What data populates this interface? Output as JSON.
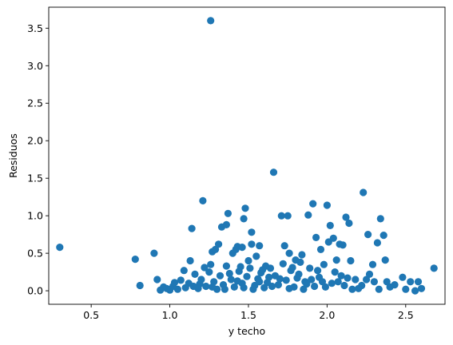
{
  "chart_data": {
    "type": "scatter",
    "title": "",
    "xlabel": "y techo",
    "ylabel": "Residuos",
    "xlim": [
      0.23,
      2.75
    ],
    "ylim": [
      -0.18,
      3.78
    ],
    "xticks": [
      0.5,
      1.0,
      1.5,
      2.0,
      2.5
    ],
    "xtick_labels": [
      "0.5",
      "1.0",
      "1.5",
      "2.0",
      "2.5"
    ],
    "yticks": [
      0.0,
      0.5,
      1.0,
      1.5,
      2.0,
      2.5,
      3.0,
      3.5
    ],
    "ytick_labels": [
      "0.0",
      "0.5",
      "1.0",
      "1.5",
      "2.0",
      "2.5",
      "3.0",
      "3.5"
    ],
    "grid": false,
    "legend": "none",
    "point_color": "#1f77b4",
    "points": [
      [
        0.3,
        0.58
      ],
      [
        0.78,
        0.42
      ],
      [
        0.81,
        0.07
      ],
      [
        0.9,
        0.5
      ],
      [
        0.92,
        0.15
      ],
      [
        1.14,
        0.83
      ],
      [
        1.13,
        0.4
      ],
      [
        1.21,
        1.2
      ],
      [
        1.26,
        3.6
      ],
      [
        1.27,
        0.52
      ],
      [
        1.29,
        0.55
      ],
      [
        1.31,
        0.62
      ],
      [
        1.33,
        0.85
      ],
      [
        1.36,
        0.88
      ],
      [
        1.37,
        1.03
      ],
      [
        1.4,
        0.5
      ],
      [
        1.42,
        0.55
      ],
      [
        1.43,
        0.59
      ],
      [
        1.46,
        0.58
      ],
      [
        1.47,
        0.96
      ],
      [
        1.48,
        1.1
      ],
      [
        1.52,
        0.78
      ],
      [
        1.52,
        0.62
      ],
      [
        1.55,
        0.46
      ],
      [
        1.57,
        0.6
      ],
      [
        1.66,
        1.58
      ],
      [
        1.71,
        1.0
      ],
      [
        1.73,
        0.6
      ],
      [
        1.75,
        1.0
      ],
      [
        1.76,
        0.5
      ],
      [
        1.8,
        0.41
      ],
      [
        1.84,
        0.48
      ],
      [
        1.88,
        1.01
      ],
      [
        1.91,
        1.16
      ],
      [
        1.93,
        0.71
      ],
      [
        1.96,
        0.55
      ],
      [
        2.0,
        1.14
      ],
      [
        2.01,
        0.65
      ],
      [
        2.02,
        0.87
      ],
      [
        2.04,
        0.7
      ],
      [
        2.06,
        0.41
      ],
      [
        2.08,
        0.62
      ],
      [
        2.1,
        0.61
      ],
      [
        2.12,
        0.98
      ],
      [
        2.14,
        0.9
      ],
      [
        2.15,
        0.4
      ],
      [
        2.23,
        1.31
      ],
      [
        2.26,
        0.75
      ],
      [
        2.29,
        0.35
      ],
      [
        2.32,
        0.64
      ],
      [
        2.34,
        0.96
      ],
      [
        2.36,
        0.74
      ],
      [
        2.37,
        0.41
      ],
      [
        2.48,
        0.18
      ],
      [
        2.53,
        0.12
      ],
      [
        2.58,
        0.12
      ],
      [
        2.6,
        0.03
      ],
      [
        2.68,
        0.3
      ],
      [
        2.5,
        0.02
      ],
      [
        2.56,
        0.0
      ],
      [
        2.43,
        0.08
      ],
      [
        2.4,
        0.05
      ],
      [
        2.3,
        0.12
      ],
      [
        2.27,
        0.22
      ],
      [
        2.22,
        0.07
      ],
      [
        2.18,
        0.15
      ],
      [
        2.2,
        0.03
      ],
      [
        2.09,
        0.2
      ],
      [
        2.05,
        0.25
      ],
      [
        2.03,
        0.1
      ],
      [
        1.98,
        0.35
      ],
      [
        1.95,
        0.18
      ],
      [
        1.92,
        0.06
      ],
      [
        1.89,
        0.3
      ],
      [
        1.86,
        0.12
      ],
      [
        1.83,
        0.38
      ],
      [
        1.82,
        0.22
      ],
      [
        1.79,
        0.05
      ],
      [
        1.77,
        0.27
      ],
      [
        1.74,
        0.14
      ],
      [
        1.72,
        0.36
      ],
      [
        1.69,
        0.08
      ],
      [
        1.67,
        0.2
      ],
      [
        1.64,
        0.3
      ],
      [
        1.62,
        0.11
      ],
      [
        1.6,
        0.04
      ],
      [
        1.58,
        0.24
      ],
      [
        1.56,
        0.16
      ],
      [
        1.54,
        0.07
      ],
      [
        1.51,
        0.3
      ],
      [
        1.49,
        0.19
      ],
      [
        1.46,
        0.1
      ],
      [
        1.44,
        0.26
      ],
      [
        1.41,
        0.05
      ],
      [
        1.39,
        0.15
      ],
      [
        1.36,
        0.33
      ],
      [
        1.34,
        0.08
      ],
      [
        1.32,
        0.2
      ],
      [
        1.3,
        0.02
      ],
      [
        1.28,
        0.12
      ],
      [
        1.25,
        0.25
      ],
      [
        1.23,
        0.06
      ],
      [
        1.2,
        0.15
      ],
      [
        1.18,
        0.03
      ],
      [
        1.16,
        0.22
      ],
      [
        1.12,
        0.1
      ],
      [
        1.1,
        0.04
      ],
      [
        1.07,
        0.14
      ],
      [
        1.05,
        0.02
      ],
      [
        1.02,
        0.06
      ],
      [
        1.0,
        0.01
      ],
      [
        0.98,
        0.03
      ],
      [
        0.96,
        0.05
      ],
      [
        0.94,
        0.01
      ],
      [
        1.09,
        0.27
      ],
      [
        1.15,
        0.06
      ],
      [
        1.22,
        0.31
      ],
      [
        1.27,
        0.05
      ],
      [
        1.35,
        0.02
      ],
      [
        1.43,
        0.13
      ],
      [
        1.5,
        0.4
      ],
      [
        1.53,
        0.02
      ],
      [
        1.57,
        0.12
      ],
      [
        1.61,
        0.33
      ],
      [
        1.65,
        0.06
      ],
      [
        1.7,
        0.16
      ],
      [
        1.76,
        0.03
      ],
      [
        1.81,
        0.17
      ],
      [
        1.85,
        0.02
      ],
      [
        1.9,
        0.15
      ],
      [
        1.94,
        0.27
      ],
      [
        1.99,
        0.05
      ],
      [
        2.07,
        0.12
      ],
      [
        2.11,
        0.07
      ],
      [
        2.16,
        0.02
      ],
      [
        2.25,
        0.15
      ],
      [
        2.33,
        0.02
      ],
      [
        2.38,
        0.12
      ],
      [
        1.03,
        0.11
      ],
      [
        1.19,
        0.09
      ],
      [
        1.38,
        0.23
      ],
      [
        1.47,
        0.04
      ],
      [
        1.63,
        0.18
      ],
      [
        1.78,
        0.31
      ],
      [
        1.87,
        0.09
      ],
      [
        1.97,
        0.12
      ],
      [
        2.13,
        0.17
      ],
      [
        1.26,
        0.35
      ],
      [
        1.45,
        0.32
      ],
      [
        1.59,
        0.28
      ]
    ]
  }
}
